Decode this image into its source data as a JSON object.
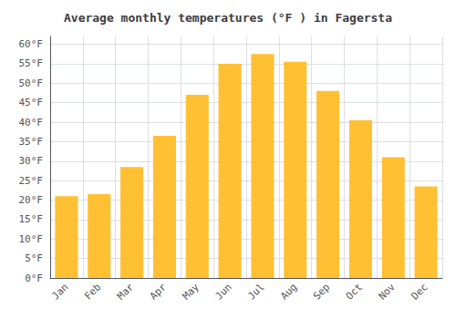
{
  "chart_data": {
    "type": "bar",
    "title": "Average monthly temperatures (°F ) in Fagersta",
    "categories": [
      "Jan",
      "Feb",
      "Mar",
      "Apr",
      "May",
      "Jun",
      "Jul",
      "Aug",
      "Sep",
      "Oct",
      "Nov",
      "Dec"
    ],
    "values": [
      21,
      21.5,
      28.5,
      36.5,
      47,
      55,
      57.5,
      55.5,
      48,
      40.5,
      31,
      23.5
    ],
    "color": "#FFC033",
    "ylim": [
      0,
      62
    ],
    "yticks": [
      {
        "value": 0,
        "label": "0°F"
      },
      {
        "value": 5,
        "label": "5°F"
      },
      {
        "value": 10,
        "label": "10°F"
      },
      {
        "value": 15,
        "label": "15°F"
      },
      {
        "value": 20,
        "label": "20°F"
      },
      {
        "value": 25,
        "label": "25°F"
      },
      {
        "value": 30,
        "label": "30°F"
      },
      {
        "value": 35,
        "label": "35°F"
      },
      {
        "value": 40,
        "label": "40°F"
      },
      {
        "value": 45,
        "label": "45°F"
      },
      {
        "value": 50,
        "label": "50°F"
      },
      {
        "value": 55,
        "label": "55°F"
      },
      {
        "value": 60,
        "label": "60°F"
      }
    ],
    "grid": true
  }
}
